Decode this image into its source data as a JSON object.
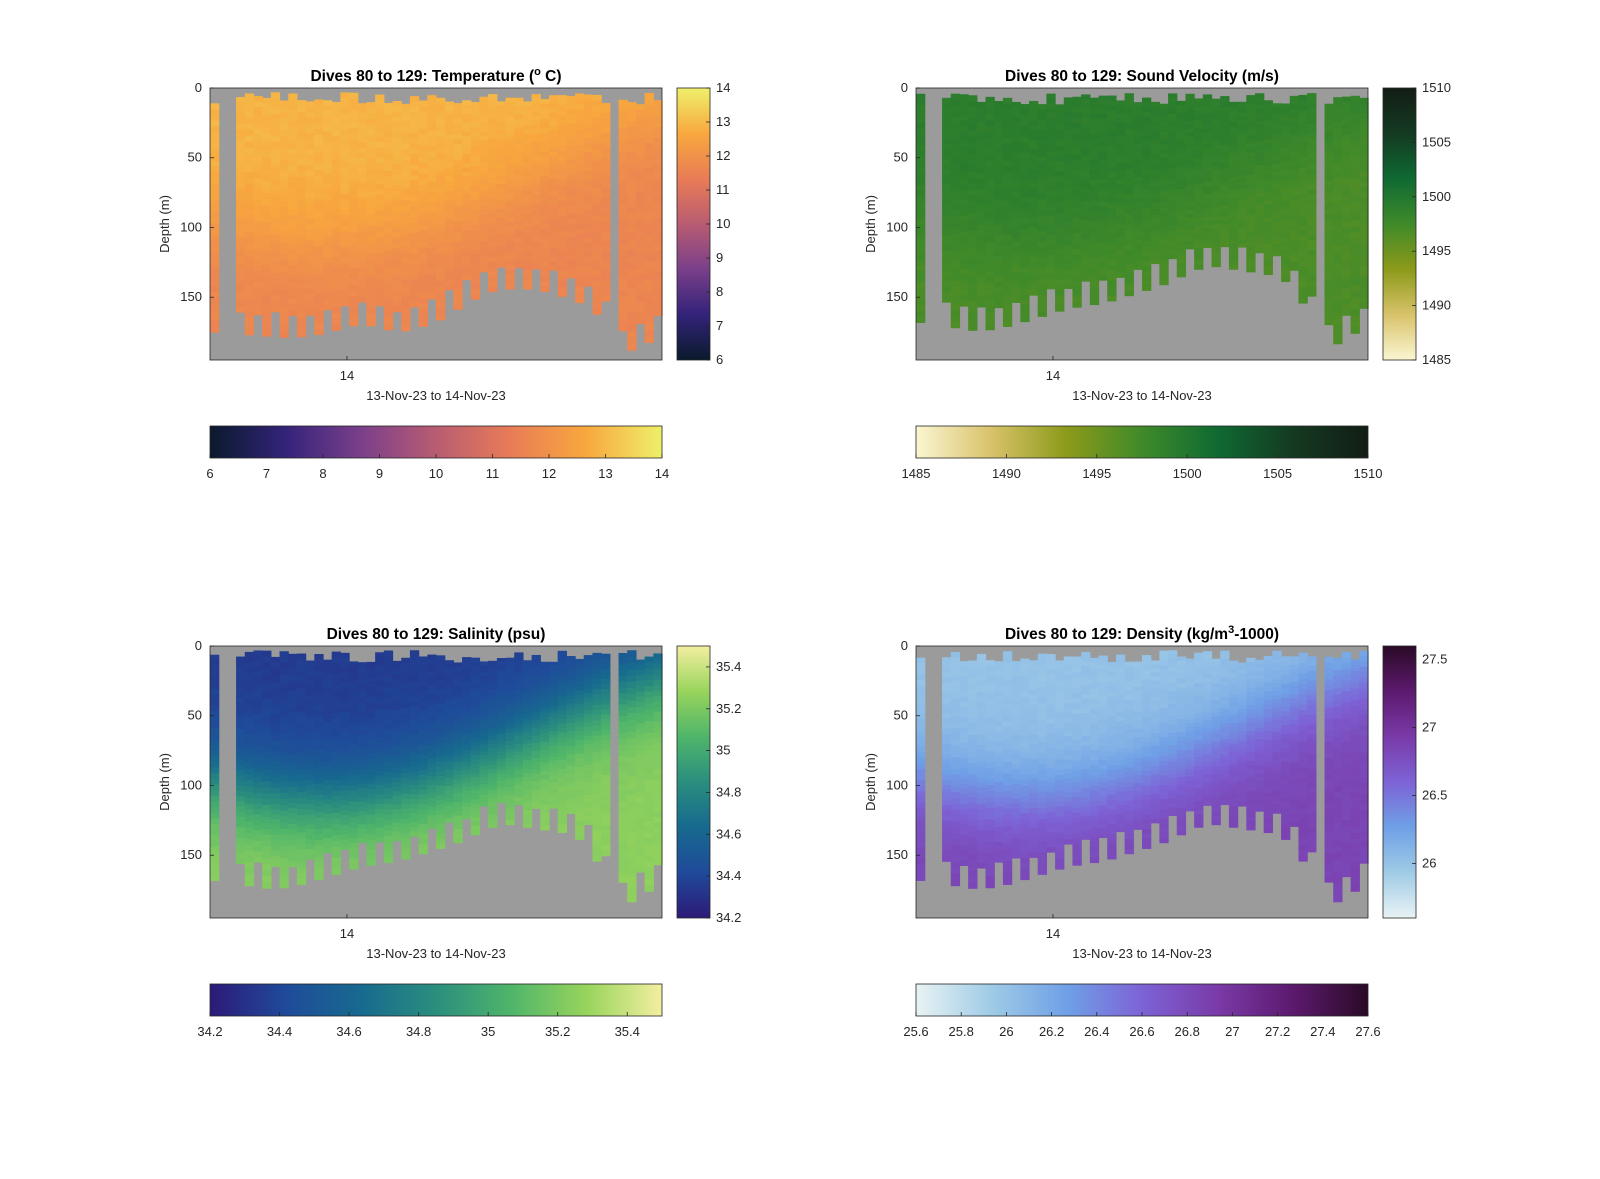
{
  "figure": {
    "background": "#ffffff",
    "mask_color": "#9b9b9b"
  },
  "chart_data": [
    {
      "type": "heatmap",
      "title": "Dives 80 to 129: Temperature (",
      "title_sup": "o",
      "title_end": " C)",
      "ylabel": "Depth (m)",
      "xlabel": "13-Nov-23 to 14-Nov-23",
      "x_ticks": [
        "14"
      ],
      "y_ticks": [
        "0",
        "50",
        "100",
        "150"
      ],
      "ylim": [
        0,
        195
      ],
      "colorbar": {
        "min": 6,
        "max": 14,
        "ticks": [
          "6",
          "7",
          "8",
          "9",
          "10",
          "11",
          "12",
          "13",
          "14"
        ],
        "stops": [
          "#0a1a2c",
          "#33237a",
          "#7a3f8a",
          "#b85c72",
          "#e97c56",
          "#f8a83e",
          "#eef06a"
        ]
      },
      "h_colorbar": {
        "min": 6,
        "max": 14,
        "ticks": [
          "6",
          "7",
          "8",
          "9",
          "10",
          "11",
          "12",
          "13",
          "14"
        ]
      },
      "surface_value": 12.9,
      "deep_value": 11.6,
      "bottom_depth_profile": [
        175,
        176,
        177,
        178,
        179,
        178,
        176,
        172,
        169,
        172,
        175,
        172,
        168,
        160,
        152,
        146,
        144,
        144,
        146,
        150,
        155,
        165,
        192,
        185,
        180
      ],
      "gap_positions": [
        0.03,
        0.9
      ]
    },
    {
      "type": "heatmap",
      "title": "Dives 80 to 129: Sound Velocity (m/s)",
      "ylabel": "Depth (m)",
      "xlabel": "13-Nov-23 to 14-Nov-23",
      "x_ticks": [
        "14"
      ],
      "y_ticks": [
        "0",
        "50",
        "100",
        "150"
      ],
      "ylim": [
        0,
        195
      ],
      "colorbar": {
        "min": 1485,
        "max": 1510,
        "ticks": [
          "1485",
          "1490",
          "1495",
          "1500",
          "1505",
          "1510"
        ],
        "stops": [
          "#fbf6d2",
          "#d8c26a",
          "#8c9a1a",
          "#3f8a2a",
          "#0f6a32",
          "#143a22",
          "#121d14"
        ]
      },
      "h_colorbar": {
        "min": 1485,
        "max": 1510,
        "ticks": [
          "1485",
          "1490",
          "1495",
          "1500",
          "1505",
          "1510"
        ]
      },
      "surface_value": 1499.2,
      "deep_value": 1496.8,
      "bottom_depth_profile": [
        168,
        170,
        172,
        174,
        173,
        170,
        166,
        162,
        158,
        156,
        154,
        150,
        146,
        142,
        136,
        130,
        128,
        130,
        132,
        134,
        140,
        160,
        188,
        180,
        172
      ],
      "gap_positions": [
        0.03,
        0.9
      ]
    },
    {
      "type": "heatmap",
      "title": "Dives 80 to 129: Salinity (psu)",
      "ylabel": "Depth (m)",
      "xlabel": "13-Nov-23 to 14-Nov-23",
      "x_ticks": [
        "14"
      ],
      "y_ticks": [
        "0",
        "50",
        "100",
        "150"
      ],
      "ylim": [
        0,
        195
      ],
      "colorbar": {
        "min": 34.2,
        "max": 35.5,
        "ticks": [
          "34.2",
          "34.4",
          "34.6",
          "34.8",
          "35",
          "35.2",
          "35.4"
        ],
        "stops": [
          "#2d1a78",
          "#1f4a9a",
          "#176a8f",
          "#2a8e7e",
          "#4fb56a",
          "#98d45c",
          "#f3efa0"
        ]
      },
      "h_colorbar": {
        "min": 34.2,
        "max": 35.5,
        "ticks": [
          "34.2",
          "34.4",
          "34.6",
          "34.8",
          "35",
          "35.2",
          "35.4"
        ]
      },
      "surface_value": 34.35,
      "deep_value": 35.25,
      "bottom_depth_profile": [
        168,
        170,
        172,
        174,
        173,
        170,
        166,
        162,
        158,
        156,
        154,
        150,
        146,
        142,
        136,
        130,
        128,
        130,
        132,
        134,
        140,
        160,
        188,
        180,
        172
      ],
      "gap_positions": [
        0.03,
        0.9
      ]
    },
    {
      "type": "heatmap",
      "title": "Dives 80 to 129: Density (kg/m",
      "title_sup": "3",
      "title_end": "-1000)",
      "ylabel": "Depth (m)",
      "xlabel": "13-Nov-23 to 14-Nov-23",
      "x_ticks": [
        "14"
      ],
      "y_ticks": [
        "0",
        "50",
        "100",
        "150"
      ],
      "ylim": [
        0,
        195
      ],
      "colorbar": {
        "min": 25.6,
        "max": 27.6,
        "ticks": [
          "26",
          "26.5",
          "27",
          "27.5"
        ],
        "stops": [
          "#e8f3f4",
          "#9fcbe6",
          "#6fa0e6",
          "#7d63d6",
          "#7a3aa8",
          "#5c1a6e",
          "#2a0a26"
        ]
      },
      "h_colorbar": {
        "min": 25.6,
        "max": 27.6,
        "ticks": [
          "25.6",
          "25.8",
          "26",
          "26.2",
          "26.4",
          "26.6",
          "26.8",
          "27",
          "27.2",
          "27.4",
          "27.6"
        ]
      },
      "surface_value": 26.0,
      "deep_value": 26.85,
      "bottom_depth_profile": [
        168,
        170,
        172,
        174,
        173,
        170,
        166,
        162,
        158,
        156,
        154,
        150,
        146,
        142,
        136,
        130,
        128,
        130,
        132,
        134,
        140,
        160,
        188,
        180,
        172
      ],
      "gap_positions": [
        0.03,
        0.9
      ]
    }
  ]
}
